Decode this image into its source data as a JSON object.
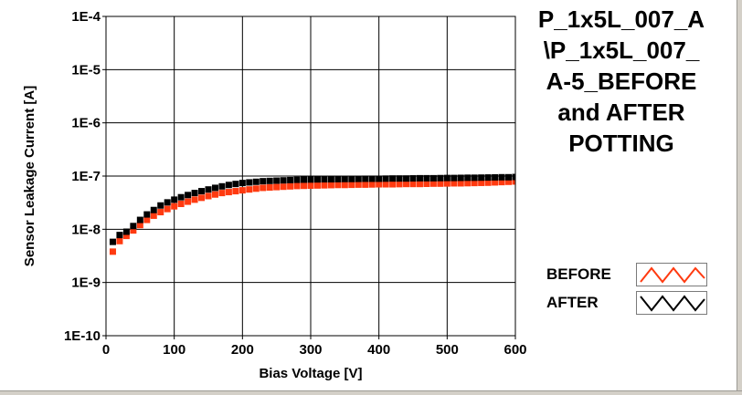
{
  "chart_data": {
    "type": "scatter",
    "title_lines": [
      "P_1x5L_007_A",
      "\\P_1x5L_007_",
      "A-5_BEFORE",
      "and AFTER",
      "POTTING"
    ],
    "xlabel": "Bias Voltage [V]",
    "ylabel": "Sensor Leakage Current [A]",
    "xlim": [
      0,
      600
    ],
    "ylim": [
      1e-10,
      0.0001
    ],
    "yscale": "log",
    "grid": true,
    "x_ticks": [
      0,
      100,
      200,
      300,
      400,
      500,
      600
    ],
    "y_ticks": [
      1e-10,
      1e-09,
      1e-08,
      1e-07,
      1e-06,
      1e-05,
      0.0001
    ],
    "y_tick_labels": [
      "1E-10",
      "1E-9",
      "1E-8",
      "1E-7",
      "1E-6",
      "1E-5",
      "1E-4"
    ],
    "legend_position": "bottom-right",
    "x": [
      10,
      20,
      30,
      40,
      50,
      60,
      70,
      80,
      90,
      100,
      110,
      120,
      130,
      140,
      150,
      160,
      170,
      180,
      190,
      200,
      210,
      220,
      230,
      240,
      250,
      260,
      270,
      280,
      290,
      300,
      310,
      320,
      330,
      340,
      350,
      360,
      370,
      380,
      390,
      400,
      410,
      420,
      430,
      440,
      450,
      460,
      470,
      480,
      490,
      500,
      510,
      520,
      530,
      540,
      550,
      560,
      570,
      580,
      590,
      600
    ],
    "series": [
      {
        "name": "BEFORE",
        "color": "#ff3a10",
        "values": [
          3.8e-09,
          6e-09,
          7.5e-09,
          9.5e-09,
          1.2e-08,
          1.5e-08,
          1.8e-08,
          2.1e-08,
          2.4e-08,
          2.7e-08,
          3e-08,
          3.3e-08,
          3.6e-08,
          3.9e-08,
          4.2e-08,
          4.5e-08,
          4.8e-08,
          5e-08,
          5.2e-08,
          5.4e-08,
          5.6e-08,
          5.8e-08,
          6e-08,
          6.1e-08,
          6.2e-08,
          6.3e-08,
          6.4e-08,
          6.5e-08,
          6.55e-08,
          6.6e-08,
          6.65e-08,
          6.7e-08,
          6.75e-08,
          6.8e-08,
          6.8e-08,
          6.85e-08,
          6.9e-08,
          6.9e-08,
          6.95e-08,
          7e-08,
          7e-08,
          7e-08,
          7.05e-08,
          7.1e-08,
          7.1e-08,
          7.1e-08,
          7.15e-08,
          7.2e-08,
          7.2e-08,
          7.25e-08,
          7.3e-08,
          7.3e-08,
          7.35e-08,
          7.4e-08,
          7.45e-08,
          7.5e-08,
          7.6e-08,
          7.7e-08,
          7.8e-08,
          7.9e-08
        ]
      },
      {
        "name": "AFTER",
        "color": "#000000",
        "values": [
          5.8e-09,
          7.8e-09,
          9e-09,
          1.15e-08,
          1.5e-08,
          1.9e-08,
          2.3e-08,
          2.8e-08,
          3.2e-08,
          3.6e-08,
          4e-08,
          4.4e-08,
          4.8e-08,
          5.2e-08,
          5.6e-08,
          6e-08,
          6.4e-08,
          6.8e-08,
          7.1e-08,
          7.4e-08,
          7.6e-08,
          7.8e-08,
          8e-08,
          8.1e-08,
          8.2e-08,
          8.3e-08,
          8.4e-08,
          8.5e-08,
          8.55e-08,
          8.6e-08,
          8.65e-08,
          8.7e-08,
          8.7e-08,
          8.75e-08,
          8.8e-08,
          8.8e-08,
          8.85e-08,
          8.9e-08,
          8.9e-08,
          8.9e-08,
          8.95e-08,
          9e-08,
          9e-08,
          9e-08,
          9.05e-08,
          9.1e-08,
          9.1e-08,
          9.1e-08,
          9.15e-08,
          9.2e-08,
          9.2e-08,
          9.25e-08,
          9.3e-08,
          9.3e-08,
          9.35e-08,
          9.4e-08,
          9.45e-08,
          9.5e-08,
          9.5e-08,
          9.6e-08
        ]
      }
    ]
  }
}
